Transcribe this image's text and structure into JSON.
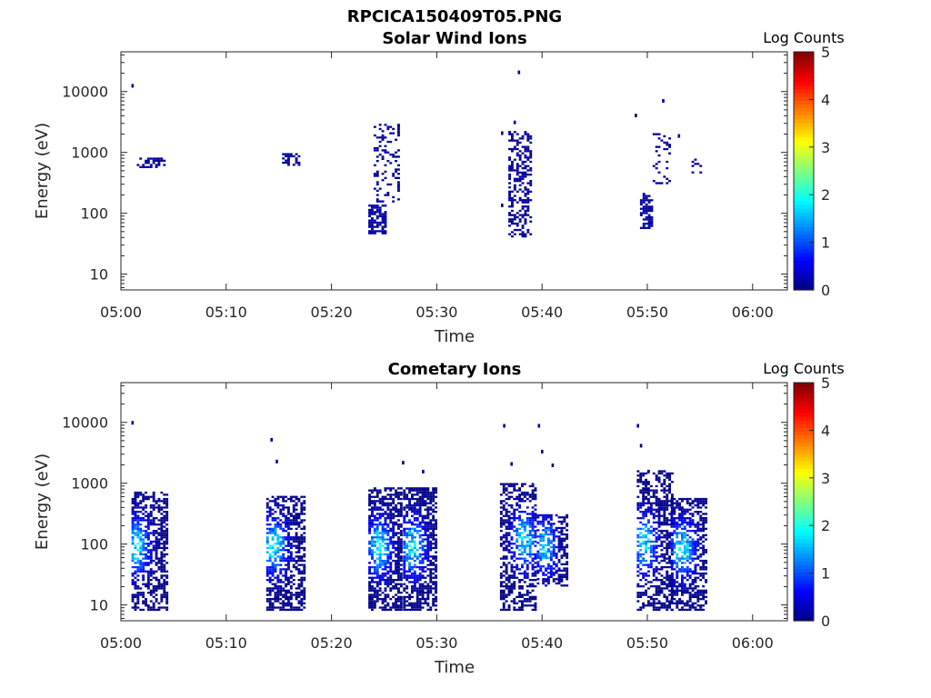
{
  "figure_title": "RPCICA150409T05.PNG",
  "chart_data": [
    {
      "type": "heatmap",
      "title": "Solar Wind Ions",
      "xlabel": "Time",
      "ylabel": "Energy (eV)",
      "x_ticks": [
        "05:00",
        "05:10",
        "05:20",
        "05:30",
        "05:40",
        "05:50",
        "06:00"
      ],
      "xlim_minutes": [
        0,
        63.3
      ],
      "y_scale": "log",
      "ylim": [
        5.5,
        45000
      ],
      "y_ticks": [
        10,
        100,
        1000,
        10000
      ],
      "y_tick_labels": [
        "10",
        "100",
        "1000",
        "10000"
      ],
      "colorbar": {
        "label": "Log Counts",
        "min": 0,
        "max": 5,
        "ticks": [
          "0",
          "1",
          "2",
          "3",
          "4",
          "5"
        ],
        "colormap": "jet"
      },
      "blobs": [
        {
          "t": [
            1.5,
            4.2
          ],
          "e": [
            550,
            800
          ],
          "level": 0.05,
          "density": 0.55
        },
        {
          "t": [
            15.3,
            17
          ],
          "e": [
            600,
            900
          ],
          "level": 0.05,
          "density": 0.6
        },
        {
          "t": [
            23.5,
            25.2
          ],
          "e": [
            45,
            130
          ],
          "level": 0.1,
          "density": 0.75
        },
        {
          "t": [
            24,
            26.5
          ],
          "e": [
            150,
            2800
          ],
          "level": 0.05,
          "density": 0.25
        },
        {
          "t": [
            36.8,
            39
          ],
          "e": [
            40,
            2200
          ],
          "level": 0.05,
          "density": 0.45
        },
        {
          "t": [
            49.3,
            50.4
          ],
          "e": [
            55,
            200
          ],
          "level": 0.1,
          "density": 0.6
        },
        {
          "t": [
            50.5,
            52.2
          ],
          "e": [
            300,
            2000
          ],
          "level": 0.05,
          "density": 0.15
        },
        {
          "t": [
            54.2,
            55.2
          ],
          "e": [
            450,
            850
          ],
          "level": 0.05,
          "density": 0.35
        }
      ],
      "points": [
        {
          "t": 1.1,
          "e": 12000,
          "level": 0.1
        },
        {
          "t": 37.8,
          "e": 20000,
          "level": 0.1
        },
        {
          "t": 37.4,
          "e": 3000,
          "level": 0.1
        },
        {
          "t": 36.2,
          "e": 2000,
          "level": 0.1
        },
        {
          "t": 48.9,
          "e": 3900,
          "level": 0.1
        },
        {
          "t": 51.5,
          "e": 6800,
          "level": 0.1
        },
        {
          "t": 53.0,
          "e": 1800,
          "level": 0.1
        },
        {
          "t": 36.2,
          "e": 130,
          "level": 0.1
        }
      ]
    },
    {
      "type": "heatmap",
      "title": "Cometary Ions",
      "xlabel": "Time",
      "ylabel": "Energy (eV)",
      "x_ticks": [
        "05:00",
        "05:10",
        "05:20",
        "05:30",
        "05:40",
        "05:50",
        "06:00"
      ],
      "xlim_minutes": [
        0,
        63.3
      ],
      "y_scale": "log",
      "ylim": [
        5.5,
        45000
      ],
      "y_ticks": [
        10,
        100,
        1000,
        10000
      ],
      "y_tick_labels": [
        "10",
        "100",
        "1000",
        "10000"
      ],
      "colorbar": {
        "label": "Log Counts",
        "min": 0,
        "max": 5,
        "ticks": [
          "0",
          "1",
          "2",
          "3",
          "4",
          "5"
        ],
        "colormap": "jet"
      },
      "blobs": [
        {
          "t": [
            1,
            4.3
          ],
          "e": [
            8,
            700
          ],
          "center_t": 1.4,
          "center_e": 90,
          "peak": 1.8,
          "density": 0.6
        },
        {
          "t": [
            13.8,
            17.4
          ],
          "e": [
            8,
            600
          ],
          "center_t": 14.4,
          "center_e": 90,
          "peak": 1.8,
          "density": 0.6
        },
        {
          "t": [
            23.5,
            26.7
          ],
          "e": [
            8,
            800
          ],
          "center_t": 24.4,
          "center_e": 85,
          "peak": 1.9,
          "density": 0.65
        },
        {
          "t": [
            26.8,
            30
          ],
          "e": [
            8,
            800
          ],
          "center_t": 27.6,
          "center_e": 85,
          "peak": 1.9,
          "density": 0.65
        },
        {
          "t": [
            36,
            39.3
          ],
          "e": [
            8,
            1000
          ],
          "center_t": 38.2,
          "center_e": 110,
          "peak": 1.8,
          "density": 0.55
        },
        {
          "t": [
            39.5,
            42.3
          ],
          "e": [
            20,
            300
          ],
          "center_t": 40.2,
          "center_e": 90,
          "peak": 1.7,
          "density": 0.55
        },
        {
          "t": [
            49,
            52.3
          ],
          "e": [
            8,
            1600
          ],
          "center_t": 49.6,
          "center_e": 100,
          "peak": 1.8,
          "density": 0.55
        },
        {
          "t": [
            52.2,
            55.7
          ],
          "e": [
            8,
            550
          ],
          "center_t": 53.2,
          "center_e": 80,
          "peak": 1.8,
          "density": 0.6
        }
      ],
      "points": [
        {
          "t": 1.1,
          "e": 9500,
          "level": 0.1
        },
        {
          "t": 14.3,
          "e": 5000,
          "level": 0.1
        },
        {
          "t": 14.8,
          "e": 2200,
          "level": 0.1
        },
        {
          "t": 26.8,
          "e": 2100,
          "level": 0.1
        },
        {
          "t": 28.7,
          "e": 1500,
          "level": 0.1
        },
        {
          "t": 36.4,
          "e": 8500,
          "level": 0.1
        },
        {
          "t": 39.7,
          "e": 8500,
          "level": 0.1
        },
        {
          "t": 40.0,
          "e": 3200,
          "level": 0.2
        },
        {
          "t": 41.0,
          "e": 1900,
          "level": 0.1
        },
        {
          "t": 37.1,
          "e": 2000,
          "level": 0.1
        },
        {
          "t": 49.1,
          "e": 8500,
          "level": 0.1
        },
        {
          "t": 49.4,
          "e": 4000,
          "level": 0.1
        },
        {
          "t": 50.1,
          "e": 1500,
          "level": 0.1
        }
      ]
    }
  ]
}
